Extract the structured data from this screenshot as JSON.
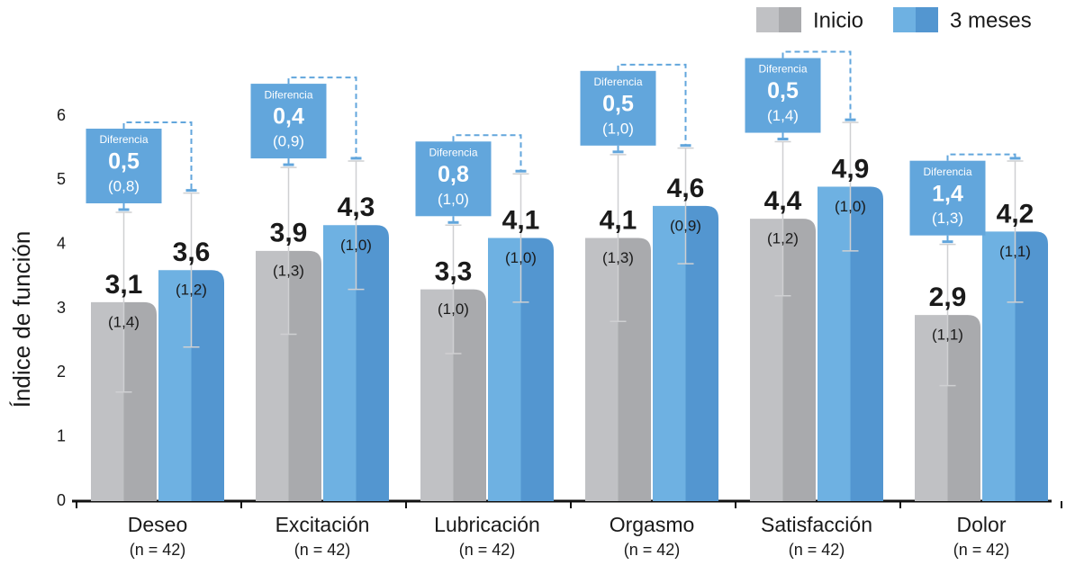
{
  "chart_data": {
    "type": "bar",
    "y_label": "Índice de función",
    "categories": [
      "Deseo",
      "Excitación",
      "Lubricación",
      "Orgasmo",
      "Satisfacción",
      "Dolor"
    ],
    "category_notes": [
      "(n = 42)",
      "(n = 42)",
      "(n = 42)",
      "(n = 42)",
      "(n = 42)",
      "(n = 42)"
    ],
    "ylim": [
      0,
      7
    ],
    "yticks": [
      0,
      1,
      2,
      3,
      4,
      5,
      6
    ],
    "legend": "top-right",
    "series": [
      {
        "name": "Inicio",
        "color": "#b5b6b9",
        "values": [
          3.1,
          3.9,
          3.3,
          4.1,
          4.4,
          2.9
        ],
        "value_labels": [
          "3,1",
          "3,9",
          "3,3",
          "4,1",
          "4,4",
          "2,9"
        ],
        "errors": [
          1.4,
          1.3,
          1.0,
          1.3,
          1.2,
          1.1
        ],
        "error_labels": [
          "(1,4)",
          "(1,3)",
          "(1,0)",
          "(1,3)",
          "(1,2)",
          "(1,1)"
        ]
      },
      {
        "name": "3 meses",
        "color": "#62a6dc",
        "values": [
          3.6,
          4.3,
          4.1,
          4.6,
          4.9,
          4.2
        ],
        "value_labels": [
          "3,6",
          "4,3",
          "4,1",
          "4,6",
          "4,9",
          "4,2"
        ],
        "errors": [
          1.2,
          1.0,
          1.0,
          0.9,
          1.0,
          1.1
        ],
        "error_labels": [
          "(1,2)",
          "(1,0)",
          "(1,0)",
          "(0,9)",
          "(1,0)",
          "(1,1)"
        ]
      }
    ],
    "differences": {
      "label": "Diferencia",
      "color": "#62a6dc",
      "values": [
        0.5,
        0.4,
        0.8,
        0.5,
        0.5,
        1.4
      ],
      "value_labels": [
        "0,5",
        "0,4",
        "0,8",
        "0,5",
        "0,5",
        "1,4"
      ],
      "errors": [
        0.8,
        0.9,
        1.0,
        1.0,
        1.4,
        1.3
      ],
      "error_labels": [
        "(0,8)",
        "(0,9)",
        "(1,0)",
        "(1,0)",
        "(1,4)",
        "(1,3)"
      ]
    }
  }
}
